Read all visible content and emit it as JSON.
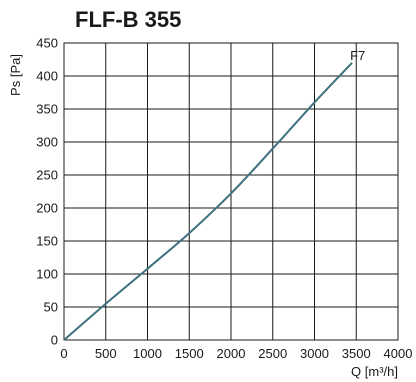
{
  "chart_data": {
    "type": "line",
    "title": "FLF-B 355",
    "xlabel": "Q [m³/h]",
    "ylabel": "Ps [Pa]",
    "xlim": [
      0,
      4000
    ],
    "ylim": [
      0,
      450
    ],
    "x_ticks": [
      0,
      500,
      1000,
      1500,
      2000,
      2500,
      3000,
      3500,
      4000
    ],
    "y_ticks": [
      0,
      50,
      100,
      150,
      200,
      250,
      300,
      350,
      400,
      450
    ],
    "grid": true,
    "series": [
      {
        "name": "F7",
        "color": "#3f7080",
        "x": [
          0,
          500,
          1000,
          1500,
          2000,
          2500,
          3000,
          3450
        ],
        "y": [
          0,
          55,
          108,
          162,
          222,
          290,
          360,
          420
        ]
      }
    ]
  }
}
